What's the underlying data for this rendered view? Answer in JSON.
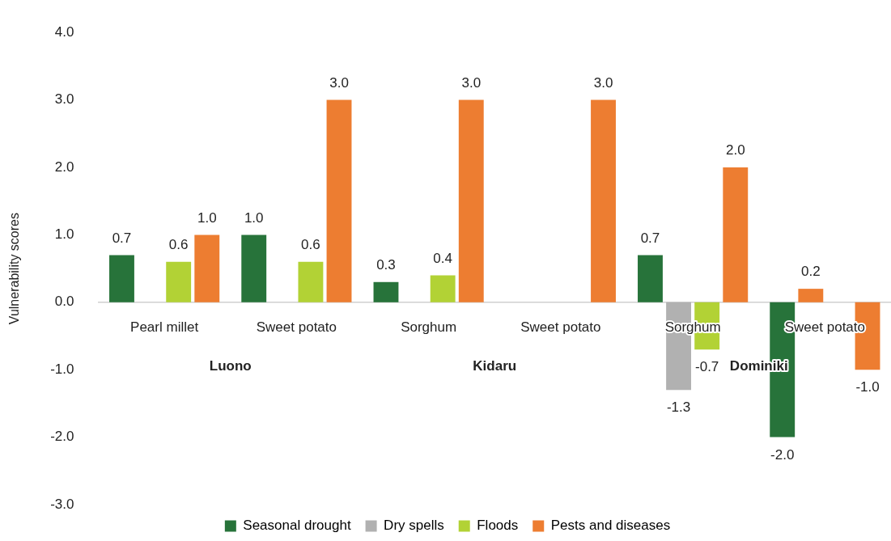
{
  "chart_data": {
    "type": "bar",
    "ylabel": "Vulnerability scores",
    "categories": [
      "Pearl millet",
      "Sweet potato",
      "Sorghum",
      "Sweet potato",
      "Sorghum",
      "Sweet potato"
    ],
    "annotations": [
      "Luono",
      "Kidaru",
      "Dominiki"
    ],
    "series": [
      {
        "name": "Seasonal drought",
        "color": "#27733a",
        "values": [
          0.7,
          1.0,
          0.3,
          null,
          0.7,
          -2.0
        ],
        "value_labels": [
          "0.7",
          "1.0",
          "0.3",
          null,
          "0.7",
          "-2.0"
        ]
      },
      {
        "name": "Dry spells",
        "color": "#b1b1b1",
        "colors": [
          "#b1b1b1",
          "#b1b1b1",
          "#b1b1b1",
          "#b1b1b1",
          "#b1b1b1",
          "#ed7d31"
        ],
        "values": [
          null,
          null,
          null,
          null,
          -1.3,
          0.2
        ],
        "value_labels": [
          null,
          null,
          null,
          null,
          "-1.3",
          "0.2"
        ]
      },
      {
        "name": "Floods",
        "color": "#b2d235",
        "values": [
          0.6,
          0.6,
          0.4,
          null,
          -0.7,
          null
        ],
        "value_labels": [
          "0.6",
          "0.6",
          "0.4",
          null,
          "-0.7",
          null
        ]
      },
      {
        "name": "Pests and diseases",
        "color": "#ed7d31",
        "values": [
          1.0,
          3.0,
          3.0,
          3.0,
          2.0,
          -1.0
        ],
        "value_labels": [
          "1.0",
          "3.0",
          "3.0",
          "3.0",
          "2.0",
          "-1.0"
        ]
      }
    ],
    "ylim": [
      -3,
      4
    ],
    "yticks": [
      {
        "value": -3,
        "label": "-3.0"
      },
      {
        "value": -2,
        "label": "-2.0"
      },
      {
        "value": -1,
        "label": "-1.0"
      },
      {
        "value": 0,
        "label": "0.0"
      },
      {
        "value": 1,
        "label": "1.0"
      },
      {
        "value": 2,
        "label": "2.0"
      },
      {
        "value": 3,
        "label": "3.0"
      },
      {
        "value": 4,
        "label": "4.0"
      }
    ],
    "grid": false,
    "legend": "bottom"
  }
}
